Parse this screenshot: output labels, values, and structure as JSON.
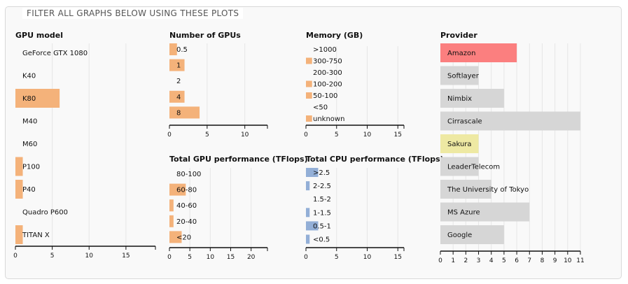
{
  "header": {
    "title": "FILTER ALL GRAPHS BELOW USING THESE PLOTS"
  },
  "colors": {
    "bar": "#f4b27a",
    "cpu_bar": "#93afd7",
    "provider_bar": "#d6d6d6",
    "selected": "#fb7f7f",
    "highlight": "#eee9a3",
    "grid": "#e6e6e6"
  },
  "chart_data": [
    {
      "type": "bar",
      "orientation": "horizontal",
      "title": "GPU model",
      "xlim": [
        0,
        19
      ],
      "xticks": [
        0,
        5,
        10,
        15
      ],
      "categories": [
        "GeForce GTX 1080",
        "K40",
        "K80",
        "M40",
        "M60",
        "P100",
        "P40",
        "Quadro P600",
        "TITAN X"
      ],
      "values": [
        0,
        0,
        6,
        0,
        0,
        1,
        1,
        0,
        1
      ]
    },
    {
      "type": "bar",
      "orientation": "horizontal",
      "title": "Number of GPUs",
      "xlim": [
        0,
        13
      ],
      "xticks": [
        0,
        5,
        10
      ],
      "categories": [
        "0.5",
        "1",
        "2",
        "4",
        "8"
      ],
      "values": [
        1,
        2,
        0,
        2,
        4
      ]
    },
    {
      "type": "bar",
      "orientation": "horizontal",
      "title": "Memory (GB)",
      "xlim": [
        0,
        16
      ],
      "xticks": [
        0,
        5,
        10,
        15
      ],
      "categories": [
        ">1000",
        "300-750",
        "200-300",
        "100-200",
        "50-100",
        "<50",
        "unknown"
      ],
      "values": [
        0,
        1,
        0,
        1,
        1,
        0,
        1
      ]
    },
    {
      "type": "bar",
      "orientation": "horizontal",
      "title": "Total GPU performance (TFlops)",
      "xlim": [
        0,
        24
      ],
      "xticks": [
        0,
        5,
        10,
        15,
        20
      ],
      "categories": [
        "80-100",
        "60-80",
        "40-60",
        "20-40",
        "<20"
      ],
      "values": [
        0,
        4,
        1,
        1,
        3
      ]
    },
    {
      "type": "bar",
      "orientation": "horizontal",
      "title": "Total CPU performance (TFlops)",
      "xlim": [
        0,
        16
      ],
      "xticks": [
        0,
        5,
        10,
        15
      ],
      "categories": [
        ">2.5",
        "2-2.5",
        "1.5-2",
        "1-1.5",
        "0.5-1",
        "<0.5"
      ],
      "values": [
        2,
        0.6,
        0,
        0.6,
        2,
        0.6
      ]
    },
    {
      "type": "bar",
      "orientation": "horizontal",
      "title": "Provider",
      "xlim": [
        0,
        11
      ],
      "xticks": [
        0,
        1,
        2,
        3,
        4,
        5,
        6,
        7,
        8,
        9,
        10,
        11
      ],
      "categories": [
        "Amazon",
        "Softlayer",
        "Nimbix",
        "Cirrascale",
        "Sakura",
        "LeaderTelecom",
        "The University of Tokyo",
        "MS Azure",
        "Google"
      ],
      "values": [
        6,
        3,
        5,
        11,
        3,
        3,
        4,
        7,
        5
      ],
      "selected": "Amazon",
      "highlighted": "Sakura"
    }
  ]
}
